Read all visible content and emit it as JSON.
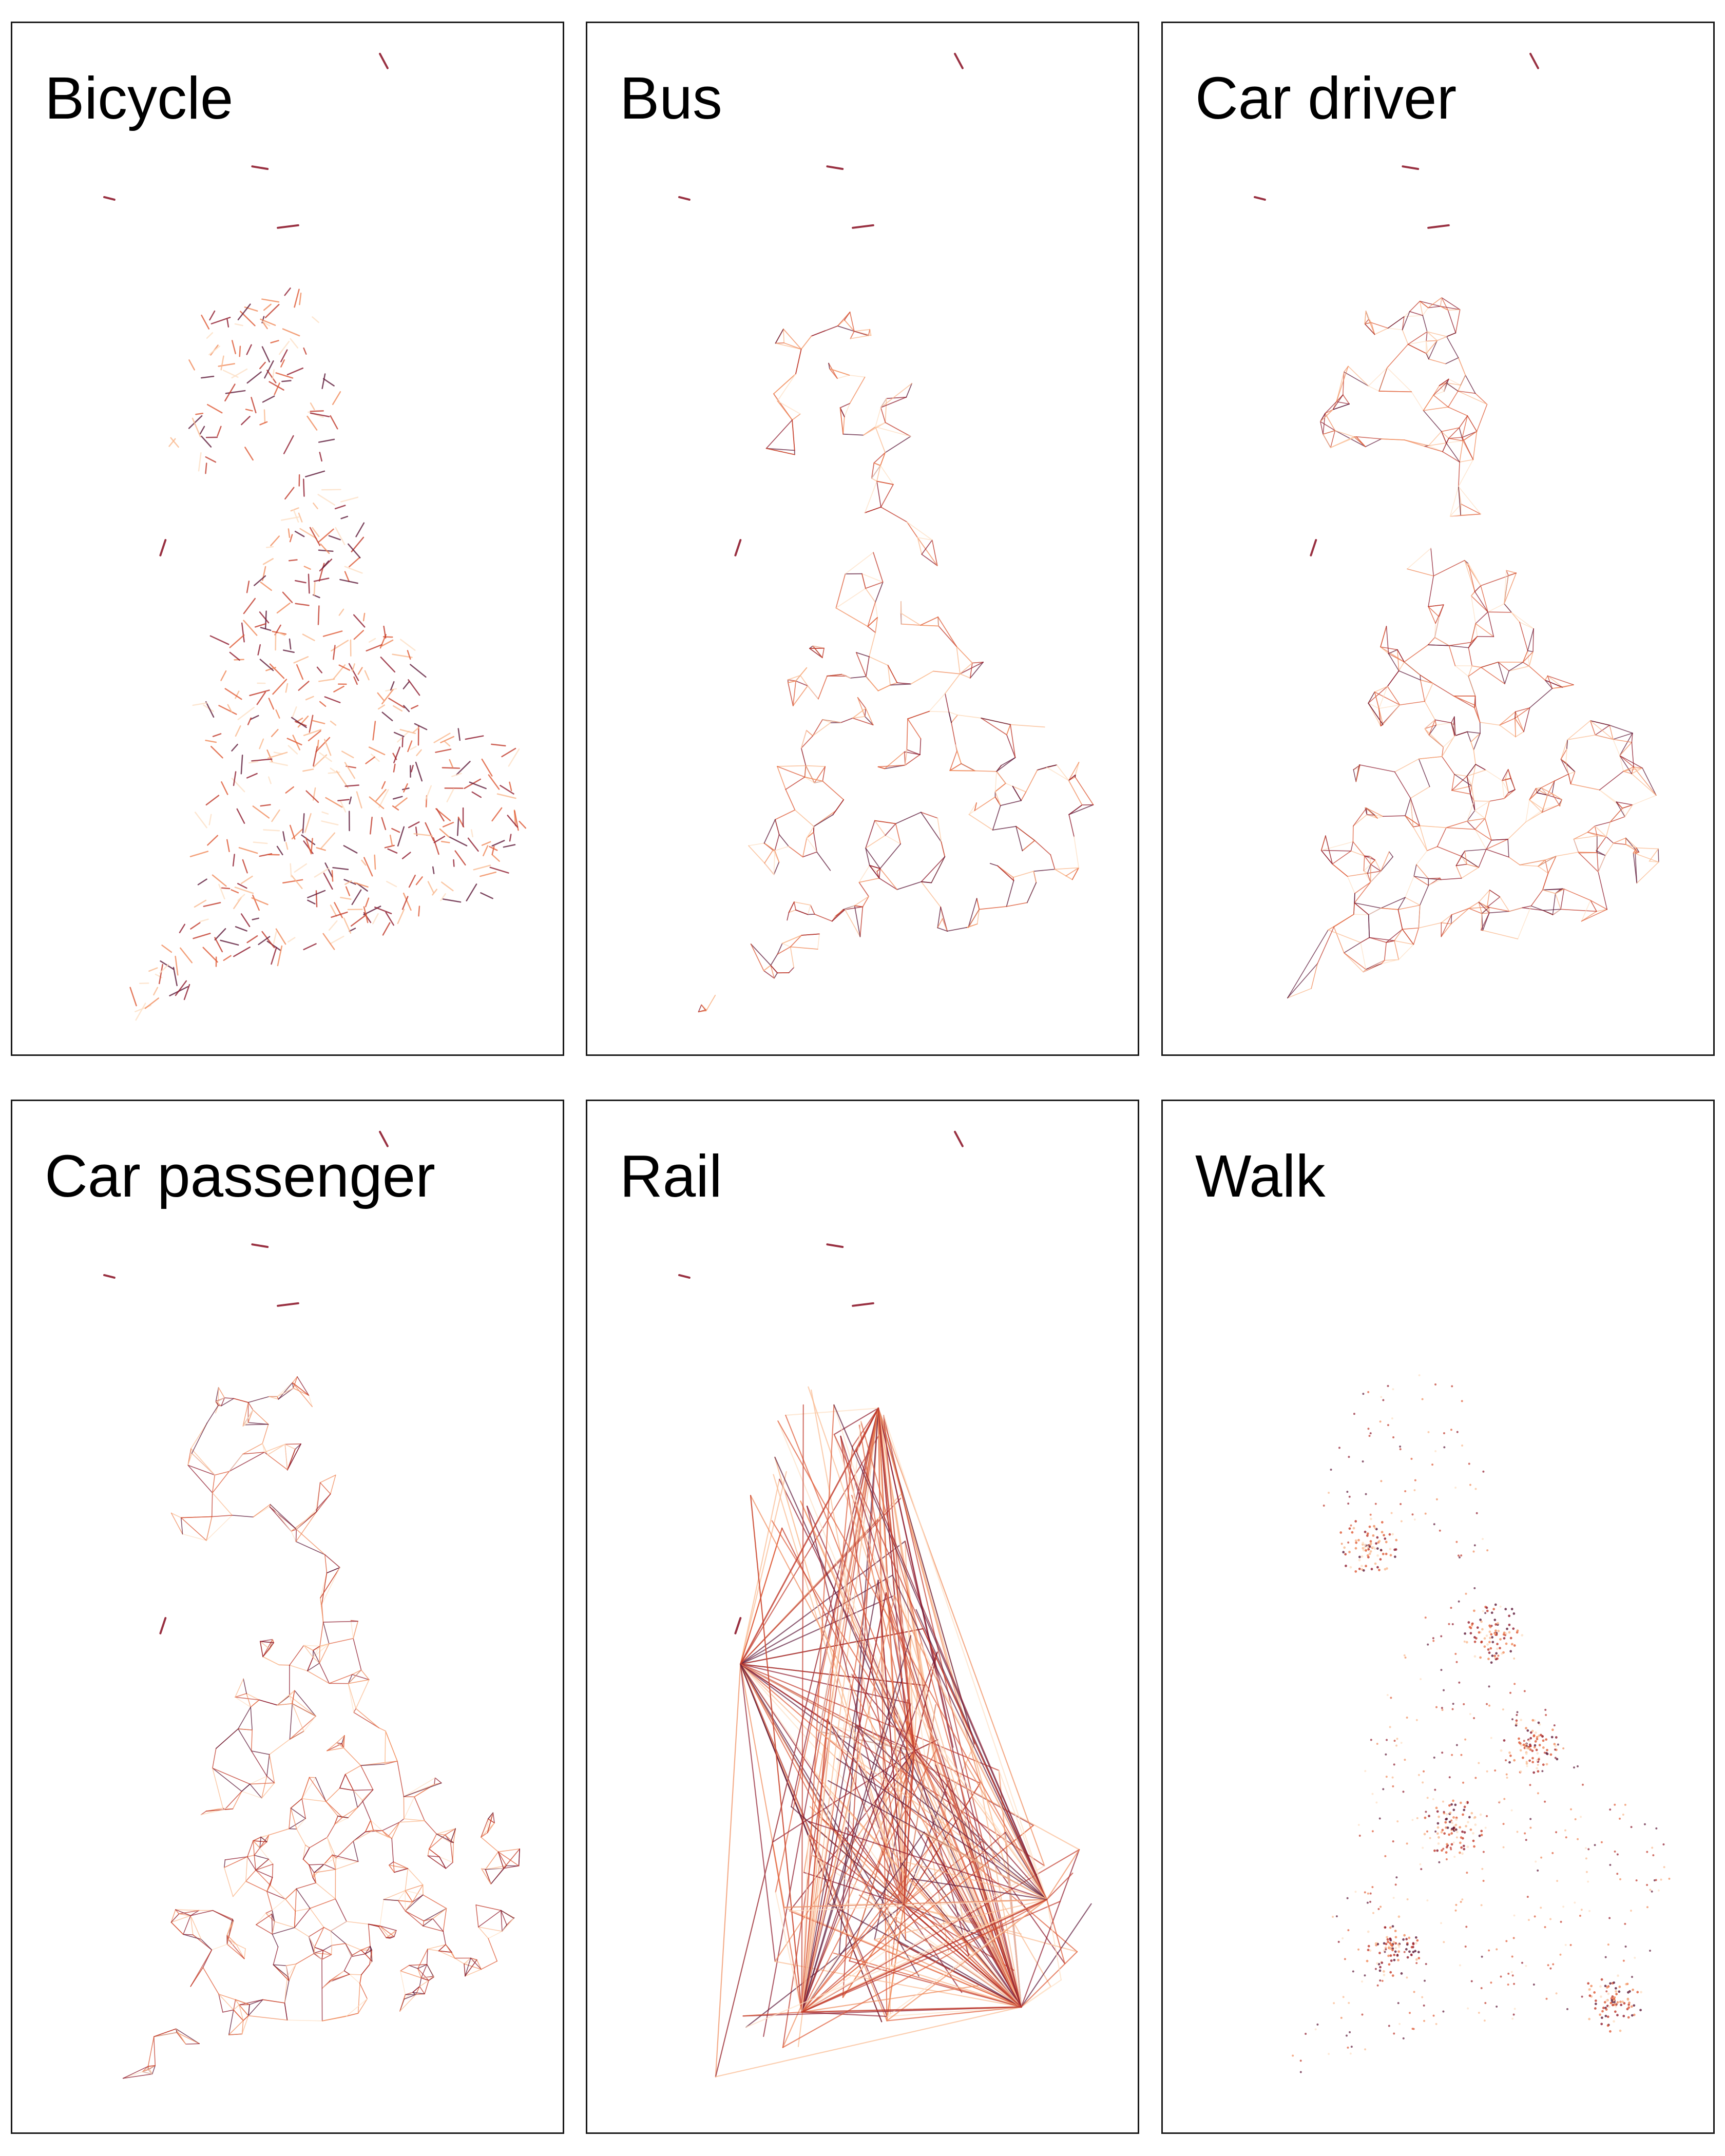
{
  "figure": {
    "panels": [
      {
        "id": "bicycle",
        "title": "Bicycle",
        "style": "short-links"
      },
      {
        "id": "bus",
        "title": "Bus",
        "style": "network"
      },
      {
        "id": "car-driver",
        "title": "Car driver",
        "style": "dense-network"
      },
      {
        "id": "car-passenger",
        "title": "Car passenger",
        "style": "dense-network"
      },
      {
        "id": "rail",
        "title": "Rail",
        "style": "hub-spoke"
      },
      {
        "id": "walk",
        "title": "Walk",
        "style": "dots"
      }
    ]
  },
  "colors": {
    "background": "#ffffff",
    "panel_border": "#1a1a1a",
    "title_text": "#000000",
    "flow_palette": [
      "#fde0c5",
      "#f9b98f",
      "#f08a5a",
      "#de5a36",
      "#c0392b",
      "#8e1b2e",
      "#5e1a3a"
    ]
  }
}
